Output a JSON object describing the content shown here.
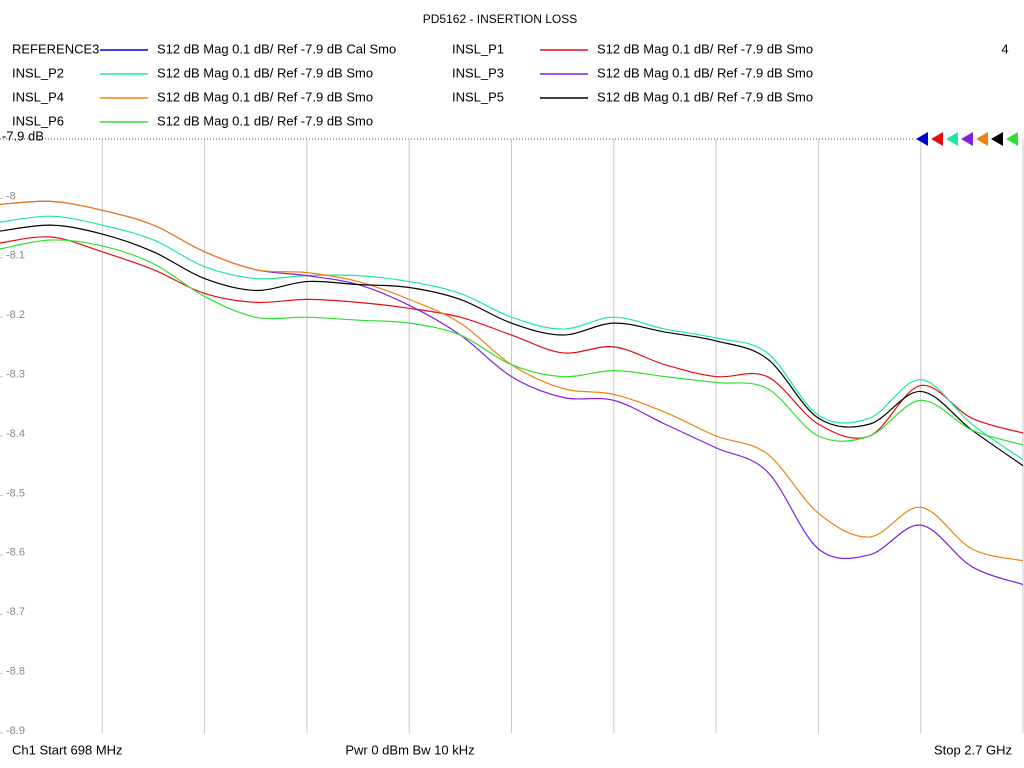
{
  "chart_data": {
    "type": "line",
    "title": "PD5162 - INSERTION LOSS",
    "marker_count": "4",
    "footer": {
      "start": "Ch1  Start  698 MHz",
      "power": "Pwr  0 dBm  Bw  10 kHz",
      "stop": "Stop  2.7 GHz"
    },
    "x": [
      698,
      798.1,
      898.2,
      998.3,
      1098.4,
      1198.5,
      1298.6,
      1398.7,
      1498.8,
      1598.9,
      1699,
      1799.1,
      1899.2,
      1999.3,
      2099.4,
      2199.5,
      2299.6,
      2399.7,
      2499.8,
      2599.9,
      2700
    ],
    "xlim": [
      698,
      2700
    ],
    "ylim": [
      -8.9,
      -7.9
    ],
    "yticks": [
      {
        "value": -7.9,
        "label": "-7.9 dB"
      },
      -8,
      -8.1,
      -8.2,
      -8.3,
      -8.4,
      -8.5,
      -8.6,
      -8.7,
      -8.8,
      -8.9
    ],
    "grid": "vertical",
    "series": [
      {
        "name": "REFERENCE3",
        "description": "S12  dB Mag  0.1 dB/ Ref -7.9 dB  Cal Smo",
        "color": "#0000cc",
        "values": [
          null,
          null,
          null,
          null,
          null,
          null,
          null,
          null,
          null,
          null,
          null,
          null,
          null,
          null,
          null,
          null,
          null,
          null,
          null,
          null,
          null
        ]
      },
      {
        "name": "INSL_P1",
        "description": "S12  dB Mag  0.1 dB/ Ref -7.9 dB  Smo",
        "color": "#e01010",
        "values": [
          -8.075,
          -8.065,
          -8.09,
          -8.12,
          -8.16,
          -8.175,
          -8.17,
          -8.175,
          -8.185,
          -8.2,
          -8.23,
          -8.26,
          -8.25,
          -8.28,
          -8.3,
          -8.3,
          -8.38,
          -8.4,
          -8.315,
          -8.37,
          -8.395
        ]
      },
      {
        "name": "INSL_P2",
        "description": "S12  dB Mag  0.1 dB/ Ref -7.9 dB  Smo",
        "color": "#20e8a0",
        "values": [
          -8.04,
          -8.03,
          -8.045,
          -8.07,
          -8.115,
          -8.135,
          -8.13,
          -8.13,
          -8.14,
          -8.16,
          -8.2,
          -8.22,
          -8.2,
          -8.22,
          -8.235,
          -8.26,
          -8.365,
          -8.37,
          -8.305,
          -8.38,
          -8.44
        ]
      },
      {
        "name": "INSL_P3",
        "description": "S12  dB Mag  0.1 dB/ Ref -7.9 dB  Smo",
        "color": "#8020e0",
        "values": [
          -8.01,
          -8.005,
          -8.02,
          -8.045,
          -8.09,
          -8.12,
          -8.13,
          -8.145,
          -8.18,
          -8.23,
          -8.3,
          -8.335,
          -8.34,
          -8.38,
          -8.42,
          -8.46,
          -8.59,
          -8.6,
          -8.55,
          -8.62,
          -8.65
        ]
      },
      {
        "name": "INSL_P4",
        "description": "S12  dB Mag  0.1 dB/ Ref -7.9 dB  Smo",
        "color": "#f08010",
        "values": [
          -8.01,
          -8.005,
          -8.02,
          -8.045,
          -8.09,
          -8.12,
          -8.125,
          -8.14,
          -8.17,
          -8.21,
          -8.28,
          -8.32,
          -8.33,
          -8.36,
          -8.4,
          -8.43,
          -8.53,
          -8.57,
          -8.52,
          -8.59,
          -8.61
        ]
      },
      {
        "name": "INSL_P5",
        "description": "S12  dB Mag  0.1 dB/ Ref -7.9 dB  Smo",
        "color": "#000000",
        "values": [
          -8.055,
          -8.045,
          -8.06,
          -8.09,
          -8.135,
          -8.155,
          -8.14,
          -8.145,
          -8.15,
          -8.17,
          -8.21,
          -8.23,
          -8.21,
          -8.225,
          -8.24,
          -8.27,
          -8.37,
          -8.38,
          -8.325,
          -8.39,
          -8.45
        ]
      },
      {
        "name": "INSL_P6",
        "description": "S12  dB Mag  0.1 dB/ Ref -7.9 dB  Smo",
        "color": "#30e030",
        "values": [
          -8.085,
          -8.07,
          -8.08,
          -8.11,
          -8.165,
          -8.2,
          -8.2,
          -8.205,
          -8.21,
          -8.23,
          -8.28,
          -8.3,
          -8.29,
          -8.3,
          -8.31,
          -8.32,
          -8.4,
          -8.4,
          -8.34,
          -8.39,
          -8.415
        ]
      }
    ]
  }
}
